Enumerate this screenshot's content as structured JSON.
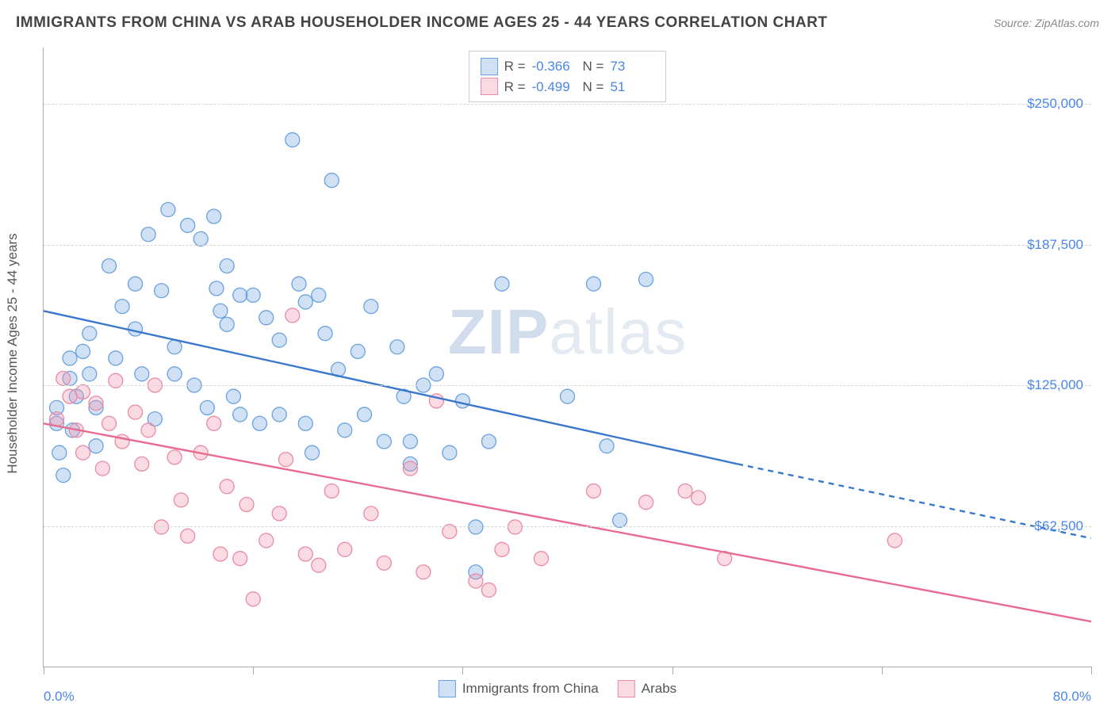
{
  "header": {
    "title": "IMMIGRANTS FROM CHINA VS ARAB HOUSEHOLDER INCOME AGES 25 - 44 YEARS CORRELATION CHART",
    "source_label": "Source:",
    "source_name": "ZipAtlas.com"
  },
  "watermark": {
    "text_a": "ZIP",
    "text_b": "atlas"
  },
  "chart": {
    "type": "scatter",
    "ylabel": "Householder Income Ages 25 - 44 years",
    "xlim": [
      0,
      80
    ],
    "ylim": [
      0,
      275000
    ],
    "x_tick_positions": [
      0,
      16,
      32,
      48,
      64,
      80
    ],
    "x_tick_labels": {
      "min": "0.0%",
      "max": "80.0%"
    },
    "y_ticks": [
      62500,
      125000,
      187500,
      250000
    ],
    "y_tick_labels": [
      "$62,500",
      "$125,000",
      "$187,500",
      "$250,000"
    ],
    "background_color": "#ffffff",
    "grid_color": "#d5d5d5",
    "axis_color": "#aaaaaa",
    "label_color": "#555555",
    "tick_label_color": "#4a86e8",
    "title_color": "#444444",
    "title_fontsize": 19,
    "label_fontsize": 17,
    "marker_radius": 9,
    "marker_stroke_width": 1.3,
    "line_width": 2.4,
    "series": [
      {
        "name": "Immigrants from China",
        "fill": "rgba(120,170,225,0.35)",
        "stroke": "#6aa2dd",
        "line_color": "#3b78cc",
        "r_label": "R =",
        "r_value": "-0.366",
        "n_label": "N =",
        "n_value": "73",
        "trend": {
          "x1": 0,
          "y1": 158000,
          "x2": 53,
          "y2": 90000,
          "x2_ext": 80,
          "y2_ext": 57000
        },
        "points": [
          [
            1,
            115000
          ],
          [
            1,
            108000
          ],
          [
            1.2,
            95000
          ],
          [
            1.5,
            85000
          ],
          [
            2,
            137000
          ],
          [
            2,
            128000
          ],
          [
            2.5,
            120000
          ],
          [
            2.2,
            105000
          ],
          [
            3,
            140000
          ],
          [
            3.5,
            148000
          ],
          [
            3.5,
            130000
          ],
          [
            4,
            115000
          ],
          [
            4,
            98000
          ],
          [
            5,
            178000
          ],
          [
            5.5,
            137000
          ],
          [
            6,
            160000
          ],
          [
            7,
            170000
          ],
          [
            7,
            150000
          ],
          [
            7.5,
            130000
          ],
          [
            8,
            192000
          ],
          [
            8.5,
            110000
          ],
          [
            9,
            167000
          ],
          [
            9.5,
            203000
          ],
          [
            10,
            142000
          ],
          [
            10,
            130000
          ],
          [
            11,
            196000
          ],
          [
            11.5,
            125000
          ],
          [
            12,
            190000
          ],
          [
            12.5,
            115000
          ],
          [
            13,
            200000
          ],
          [
            13.2,
            168000
          ],
          [
            13.5,
            158000
          ],
          [
            14,
            178000
          ],
          [
            14,
            152000
          ],
          [
            14.5,
            120000
          ],
          [
            15,
            165000
          ],
          [
            15,
            112000
          ],
          [
            16,
            165000
          ],
          [
            16.5,
            108000
          ],
          [
            17,
            155000
          ],
          [
            18,
            145000
          ],
          [
            18,
            112000
          ],
          [
            19,
            234000
          ],
          [
            19.5,
            170000
          ],
          [
            20,
            162000
          ],
          [
            20,
            108000
          ],
          [
            20.5,
            95000
          ],
          [
            21,
            165000
          ],
          [
            21.5,
            148000
          ],
          [
            22,
            216000
          ],
          [
            22.5,
            132000
          ],
          [
            23,
            105000
          ],
          [
            24,
            140000
          ],
          [
            24.5,
            112000
          ],
          [
            25,
            160000
          ],
          [
            26,
            100000
          ],
          [
            27,
            142000
          ],
          [
            27.5,
            120000
          ],
          [
            28,
            100000
          ],
          [
            28,
            90000
          ],
          [
            29,
            125000
          ],
          [
            30,
            130000
          ],
          [
            31,
            95000
          ],
          [
            32,
            118000
          ],
          [
            33,
            42000
          ],
          [
            33,
            62000
          ],
          [
            34,
            100000
          ],
          [
            35,
            170000
          ],
          [
            40,
            120000
          ],
          [
            42,
            170000
          ],
          [
            43,
            98000
          ],
          [
            44,
            65000
          ],
          [
            46,
            172000
          ]
        ]
      },
      {
        "name": "Arabs",
        "fill": "rgba(240,150,175,0.35)",
        "stroke": "#e98ba5",
        "line_color": "#e86b91",
        "r_label": "R =",
        "r_value": "-0.499",
        "n_label": "N =",
        "n_value": "51",
        "trend": {
          "x1": 0,
          "y1": 108000,
          "x2": 80,
          "y2": 20000
        },
        "points": [
          [
            1,
            110000
          ],
          [
            1.5,
            128000
          ],
          [
            2,
            120000
          ],
          [
            2.5,
            105000
          ],
          [
            3,
            122000
          ],
          [
            3,
            95000
          ],
          [
            4,
            117000
          ],
          [
            4.5,
            88000
          ],
          [
            5,
            108000
          ],
          [
            5.5,
            127000
          ],
          [
            6,
            100000
          ],
          [
            7,
            113000
          ],
          [
            7.5,
            90000
          ],
          [
            8,
            105000
          ],
          [
            8.5,
            125000
          ],
          [
            9,
            62000
          ],
          [
            10,
            93000
          ],
          [
            10.5,
            74000
          ],
          [
            11,
            58000
          ],
          [
            12,
            95000
          ],
          [
            13,
            108000
          ],
          [
            13.5,
            50000
          ],
          [
            14,
            80000
          ],
          [
            15,
            48000
          ],
          [
            15.5,
            72000
          ],
          [
            16,
            30000
          ],
          [
            17,
            56000
          ],
          [
            18,
            68000
          ],
          [
            18.5,
            92000
          ],
          [
            19,
            156000
          ],
          [
            20,
            50000
          ],
          [
            21,
            45000
          ],
          [
            22,
            78000
          ],
          [
            23,
            52000
          ],
          [
            25,
            68000
          ],
          [
            26,
            46000
          ],
          [
            28,
            88000
          ],
          [
            29,
            42000
          ],
          [
            30,
            118000
          ],
          [
            31,
            60000
          ],
          [
            33,
            38000
          ],
          [
            34,
            34000
          ],
          [
            35,
            52000
          ],
          [
            36,
            62000
          ],
          [
            38,
            48000
          ],
          [
            42,
            78000
          ],
          [
            46,
            73000
          ],
          [
            49,
            78000
          ],
          [
            50,
            75000
          ],
          [
            52,
            48000
          ],
          [
            65,
            56000
          ]
        ]
      }
    ]
  },
  "legend_bottom": {
    "items": [
      "Immigrants from China",
      "Arabs"
    ]
  }
}
